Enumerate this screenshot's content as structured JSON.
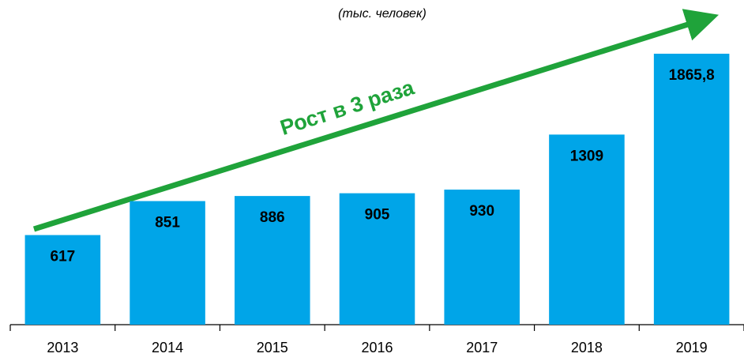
{
  "chart_data": {
    "type": "bar",
    "subtitle": "(тыс. человек)",
    "annotation": "Рост в 3 раза",
    "categories": [
      "2013",
      "2014",
      "2015",
      "2016",
      "2017",
      "2018",
      "2019"
    ],
    "values": [
      617,
      851,
      886,
      905,
      930,
      1309,
      1865.8
    ],
    "value_labels": [
      "617",
      "851",
      "886",
      "905",
      "930",
      "1309",
      "1865,8"
    ],
    "color": "#00a5e8"
  }
}
